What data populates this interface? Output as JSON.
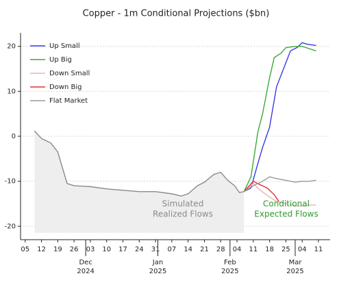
{
  "chart_data": {
    "type": "line",
    "title": "Copper - 1m Conditional Projections ($bn)",
    "xlim": [
      "2024-11-03",
      "2025-03-16"
    ],
    "xticks": [
      {
        "value": "2024-11-05",
        "label": "05"
      },
      {
        "value": "2024-11-12",
        "label": "12"
      },
      {
        "value": "2024-11-19",
        "label": "19"
      },
      {
        "value": "2024-11-26",
        "label": "26"
      },
      {
        "value": "2024-12-03",
        "label": "03"
      },
      {
        "value": "2024-12-10",
        "label": "10"
      },
      {
        "value": "2024-12-17",
        "label": "17"
      },
      {
        "value": "2024-12-24",
        "label": "24"
      },
      {
        "value": "2024-12-31",
        "label": "31"
      },
      {
        "value": "2025-01-07",
        "label": "07"
      },
      {
        "value": "2025-01-14",
        "label": "14"
      },
      {
        "value": "2025-01-21",
        "label": "21"
      },
      {
        "value": "2025-01-28",
        "label": "28"
      },
      {
        "value": "2025-02-04",
        "label": "04"
      },
      {
        "value": "2025-02-11",
        "label": "11"
      },
      {
        "value": "2025-02-18",
        "label": "18"
      },
      {
        "value": "2025-02-25",
        "label": "25"
      },
      {
        "value": "2025-03-04",
        "label": "04"
      },
      {
        "value": "2025-03-11",
        "label": "11"
      }
    ],
    "month_ticks": [
      {
        "value": "2024-12-01",
        "label": "Dec",
        "year": "2024"
      },
      {
        "value": "2025-01-01",
        "label": "Jan",
        "year": "2025"
      },
      {
        "value": "2025-02-01",
        "label": "Feb",
        "year": "2025"
      },
      {
        "value": "2025-03-01",
        "label": "Mar",
        "year": "2025"
      }
    ],
    "ylim": [
      -23,
      23
    ],
    "yticks": [
      -20,
      -10,
      0,
      10,
      20
    ],
    "grid": true,
    "legend": "upper left",
    "history": {
      "color": "#8a8a8a",
      "fill": "#eeeeee",
      "x": [
        "2024-11-09",
        "2024-11-12",
        "2024-11-16",
        "2024-11-19",
        "2024-11-21",
        "2024-11-23",
        "2024-11-26",
        "2024-12-03",
        "2024-12-10",
        "2024-12-17",
        "2024-12-24",
        "2024-12-31",
        "2025-01-07",
        "2025-01-11",
        "2025-01-14",
        "2025-01-18",
        "2025-01-21",
        "2025-01-25",
        "2025-01-28",
        "2025-01-31",
        "2025-02-03",
        "2025-02-05",
        "2025-02-07"
      ],
      "values": [
        1.2,
        -0.5,
        -1.5,
        -3.5,
        -7,
        -10.5,
        -11,
        -11.2,
        -11.7,
        -12,
        -12.3,
        -12.3,
        -12.8,
        -13.3,
        -12.8,
        -11,
        -10.2,
        -8.5,
        -8,
        -9.8,
        -11,
        -12.5,
        -12.3
      ]
    },
    "series": [
      {
        "name": "Up Small",
        "color": "#3a3ae0",
        "x": [
          "2025-02-07",
          "2025-02-10",
          "2025-02-13",
          "2025-02-15",
          "2025-02-18",
          "2025-02-21",
          "2025-02-24",
          "2025-02-27",
          "2025-03-02",
          "2025-03-04",
          "2025-03-06",
          "2025-03-10"
        ],
        "values": [
          -12.3,
          -11.5,
          -6,
          -2.5,
          2,
          11,
          15,
          19,
          19.8,
          20.8,
          20.5,
          20.2
        ]
      },
      {
        "name": "Up Big",
        "color": "#3aaa3a",
        "x": [
          "2025-02-07",
          "2025-02-10",
          "2025-02-13",
          "2025-02-15",
          "2025-02-18",
          "2025-02-20",
          "2025-02-23",
          "2025-02-25",
          "2025-03-01",
          "2025-03-04",
          "2025-03-07",
          "2025-03-10"
        ],
        "values": [
          -12.3,
          -9,
          1,
          5,
          13,
          17.5,
          18.5,
          19.7,
          20,
          20,
          19.5,
          19
        ]
      },
      {
        "name": "Down Small",
        "color": "#f0b0b8",
        "x": [
          "2025-02-07",
          "2025-02-11",
          "2025-02-14",
          "2025-02-18",
          "2025-02-21",
          "2025-02-25",
          "2025-03-01",
          "2025-03-04",
          "2025-03-07",
          "2025-03-10"
        ],
        "values": [
          -12.3,
          -10.5,
          -12,
          -13.5,
          -14.5,
          -15,
          -15.5,
          -15.5,
          -15.3,
          -15.3
        ]
      },
      {
        "name": "Down Big",
        "color": "#e03030",
        "x": [
          "2025-02-07",
          "2025-02-11",
          "2025-02-14",
          "2025-02-17",
          "2025-02-20",
          "2025-02-22"
        ],
        "values": [
          -12.3,
          -10,
          -10.8,
          -11.5,
          -13,
          -14.5
        ]
      },
      {
        "name": "Flat Market",
        "color": "#999999",
        "x": [
          "2025-02-07",
          "2025-02-11",
          "2025-02-15",
          "2025-02-18",
          "2025-02-20",
          "2025-02-25",
          "2025-03-01",
          "2025-03-04",
          "2025-03-07",
          "2025-03-10"
        ],
        "values": [
          -12.3,
          -11,
          -10,
          -9,
          -9.3,
          -9.8,
          -10.2,
          -10,
          -10,
          -9.8
        ]
      }
    ],
    "annotations": [
      {
        "lines": [
          "Simulated",
          "Realized Flows"
        ],
        "color": "#8a8a8a"
      },
      {
        "lines": [
          "Conditional",
          "Expected Flows"
        ],
        "color": "#2e9a2e"
      }
    ]
  }
}
